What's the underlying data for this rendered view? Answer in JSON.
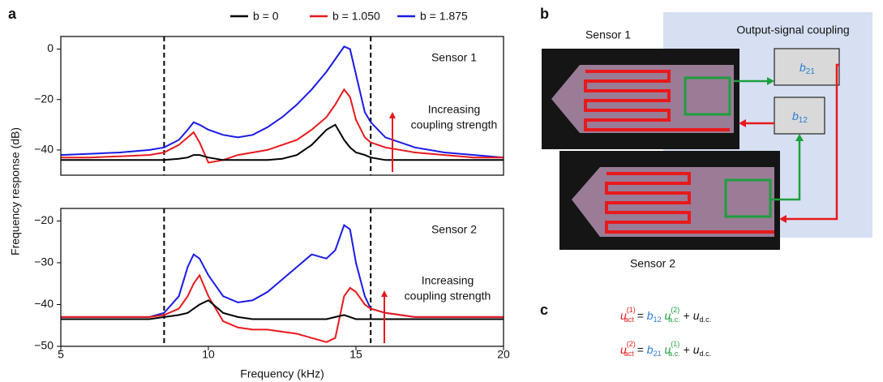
{
  "panels": [
    "a",
    "b",
    "c"
  ],
  "chart_data": [
    {
      "type": "line",
      "title": "Sensor 1",
      "x": [
        5,
        6,
        7,
        8,
        8.5,
        9,
        9.3,
        9.5,
        9.7,
        10,
        10.5,
        11,
        11.5,
        12,
        12.5,
        13,
        13.5,
        14,
        14.3,
        14.6,
        14.8,
        15,
        15.3,
        15.5,
        16,
        17,
        18,
        19,
        20
      ],
      "xlim": [
        5,
        20
      ],
      "ylim": [
        -50,
        5
      ],
      "yticks": [
        {
          "value": -40,
          "label": "−40"
        },
        {
          "value": -20,
          "label": "−20"
        },
        0
      ],
      "vlines": [
        8.5,
        15.5
      ],
      "annotation": [
        "Increasing",
        "coupling strength"
      ],
      "ylabel": "Frequency response (dB)",
      "series": [
        {
          "name": "b = 0",
          "color": "#000000",
          "values": [
            -44,
            -44,
            -44,
            -44,
            -44,
            -43.5,
            -43,
            -42,
            -42,
            -43,
            -44,
            -44,
            -44,
            -44,
            -43.5,
            -42,
            -38,
            -32,
            -30,
            -36,
            -39,
            -41,
            -42,
            -43,
            -44,
            -44,
            -44,
            -44,
            -44
          ]
        },
        {
          "name": "b = 1.050",
          "color": "#e8191c",
          "values": [
            -43,
            -43,
            -42.5,
            -42,
            -41,
            -38,
            -35,
            -33,
            -37,
            -45,
            -44,
            -42,
            -41,
            -40,
            -38,
            -36,
            -32,
            -27,
            -22,
            -16,
            -19,
            -28,
            -35,
            -37,
            -39,
            -41,
            -42,
            -43,
            -43
          ]
        },
        {
          "name": "b = 1.875",
          "color": "#1a1ae6",
          "values": [
            -42,
            -41.5,
            -41,
            -40,
            -39,
            -36,
            -32,
            -29,
            -30,
            -32,
            -34,
            -35,
            -34,
            -31,
            -27,
            -22,
            -16,
            -9,
            -4,
            1,
            0,
            -10,
            -25,
            -29,
            -35,
            -39,
            -41,
            -42,
            -43
          ]
        }
      ]
    },
    {
      "type": "line",
      "title": "Sensor 2",
      "x": [
        5,
        6,
        7,
        8,
        8.5,
        9,
        9.3,
        9.5,
        9.7,
        10,
        10.5,
        11,
        11.5,
        12,
        12.5,
        13,
        13.5,
        14,
        14.3,
        14.6,
        14.8,
        15,
        15.3,
        15.5,
        16,
        17,
        18,
        19,
        20
      ],
      "xlim": [
        5,
        20
      ],
      "xticks": [
        5,
        10,
        15,
        20
      ],
      "ylim": [
        -50,
        -17
      ],
      "yticks": [
        {
          "value": -50,
          "label": "−50"
        },
        {
          "value": -40,
          "label": "−40"
        },
        {
          "value": -30,
          "label": "−30"
        },
        {
          "value": -20,
          "label": "−20"
        }
      ],
      "vlines": [
        8.5,
        15.5
      ],
      "annotation": [
        "Increasing",
        "coupling strength"
      ],
      "xlabel": "Frequency (kHz)",
      "series": [
        {
          "color": "#000000",
          "values": [
            -43.5,
            -43.5,
            -43.5,
            -43.5,
            -43,
            -42.5,
            -42,
            -41,
            -40,
            -39,
            -42,
            -43,
            -43.5,
            -43.5,
            -43.5,
            -43.5,
            -43.5,
            -43.5,
            -43,
            -42.5,
            -43,
            -43.5,
            -43.5,
            -43.5,
            -43.5,
            -43.5,
            -43.5,
            -43.5,
            -43.5
          ]
        },
        {
          "color": "#e8191c",
          "values": [
            -43,
            -43,
            -43,
            -43,
            -42.5,
            -41,
            -38,
            -35,
            -33,
            -38,
            -44,
            -45.5,
            -46,
            -46,
            -46.5,
            -47,
            -48,
            -49,
            -48,
            -38,
            -36,
            -37,
            -40,
            -41,
            -42,
            -43,
            -43,
            -43,
            -43
          ]
        },
        {
          "color": "#1a1ae6",
          "values": [
            -43,
            -43,
            -43,
            -43,
            -42,
            -38,
            -31,
            -28,
            -29,
            -33,
            -38,
            -39.5,
            -39,
            -37,
            -34,
            -31,
            -28,
            -29,
            -27,
            -21,
            -22,
            -30,
            -38,
            -41,
            -42,
            -43,
            -43,
            -43,
            -43
          ]
        }
      ]
    }
  ],
  "diagram": {
    "sensor1": "Sensor 1",
    "sensor2": "Sensor 2",
    "coupling": "Output-signal coupling",
    "boxes": [
      {
        "symbol": "b",
        "sub": "21"
      },
      {
        "symbol": "b",
        "sub": "12"
      }
    ]
  },
  "equations": [
    [
      {
        "t": "u",
        "sup": "(1)",
        "sub": "act",
        "color": "#e8191c"
      },
      {
        "t": " = "
      },
      {
        "t": "b",
        "sub": "12",
        "color": "#2b7bd6"
      },
      {
        "t": " u",
        "sup": "(2)",
        "sub": "a.c.",
        "color": "#1e9e3e"
      },
      {
        "t": " + "
      },
      {
        "t": "u",
        "sub": "d.c."
      }
    ],
    [
      {
        "t": "u",
        "sup": "(2)",
        "sub": "act",
        "color": "#e8191c"
      },
      {
        "t": " = "
      },
      {
        "t": "b",
        "sub": "21",
        "color": "#2b7bd6"
      },
      {
        "t": " u",
        "sup": "(1)",
        "sub": "a.c.",
        "color": "#1e9e3e"
      },
      {
        "t": " + "
      },
      {
        "t": "u",
        "sub": "d.c."
      }
    ]
  ]
}
